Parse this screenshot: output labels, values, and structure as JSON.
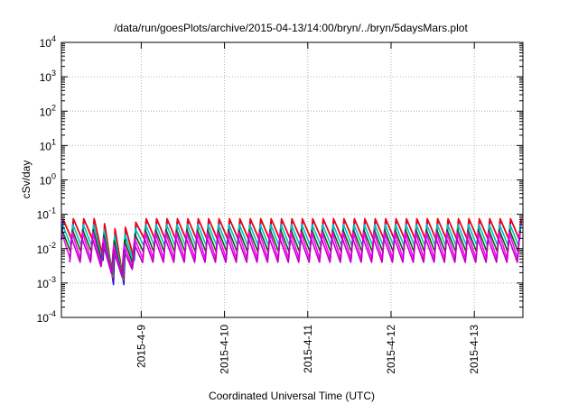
{
  "chart_data": {
    "type": "line",
    "title": "/data/run/goesPlots/archive/2015-04-13/14:00/bryn/../bryn/5daysMars.plot",
    "xlabel": "Coordinated Universal Time (UTC)",
    "ylabel": "cSv/day",
    "yscale": "log",
    "ylim": [
      0.0001,
      10000
    ],
    "y_ticks": [
      {
        "base": "10",
        "exp": "-4"
      },
      {
        "base": "10",
        "exp": "-3"
      },
      {
        "base": "10",
        "exp": "-2"
      },
      {
        "base": "10",
        "exp": "-1"
      },
      {
        "base": "10",
        "exp": "0"
      },
      {
        "base": "10",
        "exp": "1"
      },
      {
        "base": "10",
        "exp": "2"
      },
      {
        "base": "10",
        "exp": "3"
      },
      {
        "base": "10",
        "exp": "4"
      }
    ],
    "xlim": [
      "2015-04-08 01:00",
      "2015-04-13 14:00"
    ],
    "x_ticks": [
      "2015-4-9",
      "2015-4-10",
      "2015-4-11",
      "2015-4-12",
      "2015-4-13"
    ],
    "grid": true,
    "legend": "none",
    "cycle_hours": 3,
    "series": [
      {
        "color": "#1010ff",
        "peak": 0.07,
        "trough": 0.018
      },
      {
        "color": "#ff0000",
        "peak": 0.075,
        "trough": 0.02
      },
      {
        "color": "#00c0c0",
        "peak": 0.05,
        "trough": 0.012
      },
      {
        "color": "#006000",
        "peak": 0.035,
        "trough": 0.008
      },
      {
        "color": "#ff00ff",
        "peak": 0.03,
        "trough": 0.005
      },
      {
        "color": "#c000c0",
        "peak": 0.02,
        "trough": 0.004
      }
    ],
    "dip": {
      "time": "2015-04-08 17:30",
      "min_value": 0.0004
    }
  }
}
